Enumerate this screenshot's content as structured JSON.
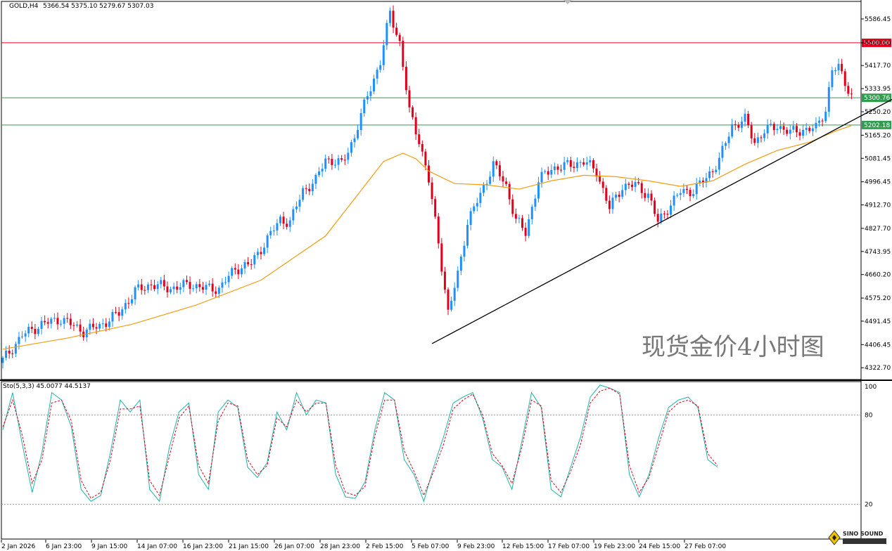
{
  "header": {
    "symbol": "GOLD,H4",
    "ohlc": "5366.54 5375.10 5279.67 5307.03",
    "indicator": "Sto(5,3,3) 45.0077 44.5137"
  },
  "watermark": "现货金价4小时图",
  "logo_text": "SINO SOUND",
  "colors": {
    "bull": "#1E90FF",
    "bear": "#E0001B",
    "ma": "#F39C12",
    "resistance": "#E0001B",
    "support_current": "#2E9E4E",
    "support_level": "#5FAF6F",
    "trendline": "#000000",
    "sto_main": "#20B2AA",
    "sto_signal": "#E0001B"
  },
  "levels": [
    {
      "name": "resistance",
      "value": 5500.0,
      "label": "5500.00",
      "color": "#E0001B"
    },
    {
      "name": "current",
      "value": 5300.76,
      "label": "5300.76",
      "color": "#2E9E4E"
    },
    {
      "name": "support",
      "value": 5202.18,
      "label": "5202.18",
      "color": "#2E9E4E"
    }
  ],
  "chart_data": [
    {
      "type": "candlestick",
      "title": "GOLD,H4",
      "ylim": [
        4280,
        5650
      ],
      "y_ticks": [
        "5586.45",
        "5500.00",
        "5417.70",
        "5333.95",
        "5250.20",
        "5165.20",
        "5081.45",
        "4996.45",
        "4912.70",
        "4827.70",
        "4743.95",
        "4660.20",
        "4575.20",
        "4491.45",
        "4406.45",
        "4322.70"
      ],
      "x_ticks": [
        "2 Jan 2026",
        "6 Jan 23:00",
        "9 Jan 15:00",
        "14 Jan 07:00",
        "16 Jan 23:00",
        "21 Jan 15:00",
        "26 Jan 07:00",
        "28 Jan 23:00",
        "2 Feb 15:00",
        "5 Feb 07:00",
        "9 Feb 23:00",
        "12 Feb 15:00",
        "17 Feb 07:00",
        "19 Feb 23:00",
        "24 Feb 15:00",
        "27 Feb 07:00"
      ],
      "series": [
        {
          "name": "",
          "anchors": [
            [
              0,
              4350
            ],
            [
              6,
              4440
            ],
            [
              12,
              4480
            ],
            [
              18,
              4500
            ],
            [
              25,
              4455
            ],
            [
              30,
              4475
            ],
            [
              36,
              4520
            ],
            [
              41,
              4600
            ],
            [
              46,
              4625
            ],
            [
              52,
              4610
            ],
            [
              58,
              4625
            ],
            [
              63,
              4610
            ],
            [
              67,
              4610
            ],
            [
              72,
              4680
            ],
            [
              77,
              4700
            ],
            [
              82,
              4790
            ],
            [
              86,
              4860
            ],
            [
              89,
              4850
            ],
            [
              93,
              4965
            ],
            [
              97,
              5000
            ],
            [
              100,
              5080
            ],
            [
              105,
              5060
            ],
            [
              109,
              5160
            ],
            [
              113,
              5310
            ],
            [
              117,
              5430
            ],
            [
              120,
              5610
            ],
            [
              123,
              5500
            ],
            [
              126,
              5250
            ],
            [
              129,
              5150
            ],
            [
              132,
              5000
            ],
            [
              135,
              4780
            ],
            [
              138,
              4520
            ],
            [
              141,
              4660
            ],
            [
              144,
              4850
            ],
            [
              148,
              4950
            ],
            [
              152,
              5060
            ],
            [
              156,
              4980
            ],
            [
              159,
              4860
            ],
            [
              162,
              4810
            ],
            [
              166,
              5000
            ],
            [
              170,
              5045
            ],
            [
              175,
              5055
            ],
            [
              180,
              5070
            ],
            [
              184,
              5035
            ],
            [
              188,
              4900
            ],
            [
              192,
              4980
            ],
            [
              196,
              4985
            ],
            [
              200,
              4950
            ],
            [
              203,
              4850
            ],
            [
              206,
              4900
            ],
            [
              210,
              4960
            ],
            [
              214,
              4965
            ],
            [
              218,
              5010
            ],
            [
              222,
              5075
            ],
            [
              226,
              5200
            ],
            [
              230,
              5220
            ],
            [
              233,
              5140
            ],
            [
              236,
              5180
            ],
            [
              240,
              5200
            ],
            [
              244,
              5175
            ],
            [
              248,
              5185
            ],
            [
              252,
              5190
            ],
            [
              255,
              5260
            ],
            [
              257,
              5400
            ],
            [
              259,
              5410
            ],
            [
              261,
              5360
            ],
            [
              263,
              5307
            ]
          ]
        },
        {
          "name": "MA",
          "points": [
            [
              0,
              4390
            ],
            [
              20,
              4430
            ],
            [
              40,
              4480
            ],
            [
              60,
              4550
            ],
            [
              80,
              4640
            ],
            [
              100,
              4800
            ],
            [
              110,
              4950
            ],
            [
              118,
              5070
            ],
            [
              124,
              5100
            ],
            [
              128,
              5080
            ],
            [
              132,
              5035
            ],
            [
              140,
              4990
            ],
            [
              150,
              4985
            ],
            [
              160,
              4970
            ],
            [
              170,
              5000
            ],
            [
              180,
              5020
            ],
            [
              190,
              5015
            ],
            [
              200,
              5000
            ],
            [
              210,
              4980
            ],
            [
              220,
              5000
            ],
            [
              230,
              5060
            ],
            [
              240,
              5110
            ],
            [
              250,
              5140
            ],
            [
              258,
              5180
            ],
            [
              263,
              5200
            ]
          ]
        }
      ],
      "trendline": [
        [
          133,
          4410
        ],
        [
          278,
          5310
        ]
      ]
    },
    {
      "type": "line",
      "title": "Sto(5,3,3)",
      "ylim": [
        0,
        100
      ],
      "y_ticks": [
        "100",
        "80",
        "20"
      ],
      "series": [
        {
          "name": "45.0077",
          "values": [
            70,
            95,
            60,
            28,
            55,
            95,
            90,
            72,
            30,
            22,
            26,
            55,
            90,
            82,
            90,
            30,
            22,
            58,
            82,
            88,
            40,
            30,
            82,
            90,
            85,
            45,
            38,
            48,
            82,
            70,
            95,
            80,
            90,
            88,
            40,
            25,
            24,
            35,
            70,
            95,
            90,
            50,
            40,
            22,
            45,
            65,
            88,
            92,
            95,
            78,
            50,
            45,
            30,
            62,
            95,
            85,
            30,
            25,
            45,
            65,
            92,
            100,
            98,
            95,
            40,
            25,
            40,
            65,
            85,
            90,
            92,
            85,
            50,
            45
          ]
        },
        {
          "name": "44.5137",
          "values": [
            72,
            90,
            66,
            34,
            50,
            88,
            90,
            76,
            36,
            24,
            28,
            50,
            84,
            84,
            86,
            36,
            26,
            52,
            78,
            86,
            46,
            34,
            76,
            88,
            86,
            50,
            40,
            46,
            78,
            72,
            90,
            82,
            88,
            88,
            46,
            28,
            26,
            32,
            66,
            90,
            90,
            56,
            42,
            26,
            42,
            60,
            84,
            90,
            94,
            80,
            54,
            46,
            34,
            58,
            90,
            86,
            36,
            28,
            42,
            60,
            88,
            96,
            98,
            94,
            46,
            28,
            38,
            60,
            82,
            88,
            90,
            86,
            54,
            46
          ]
        }
      ]
    }
  ]
}
